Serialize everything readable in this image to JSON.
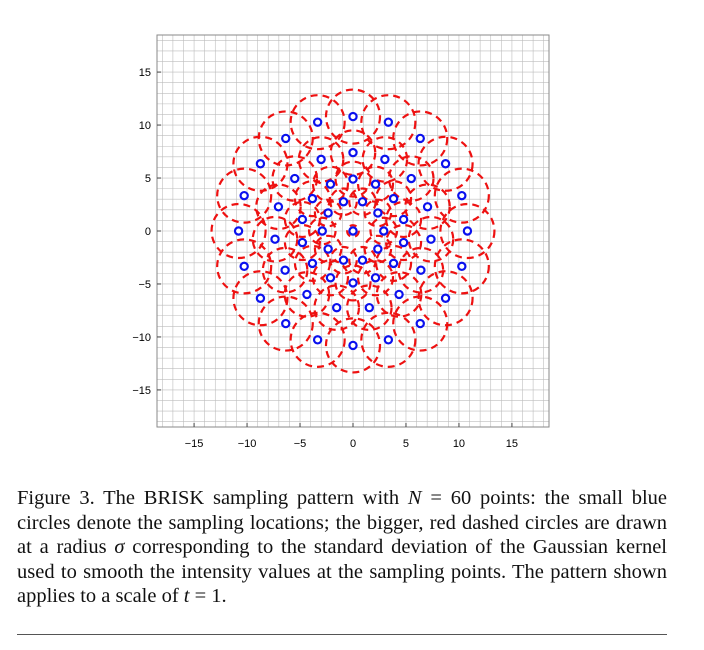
{
  "chart_data": {
    "type": "scatter",
    "title": "",
    "xlabel": "",
    "ylabel": "",
    "xlim": [
      -18.5,
      18.5
    ],
    "ylim": [
      -18.5,
      18.5
    ],
    "xticks": [
      -15,
      -10,
      -5,
      0,
      5,
      10,
      15
    ],
    "yticks": [
      15,
      10,
      5,
      0,
      -5,
      -10,
      -15
    ],
    "xtick_labels": [
      "−15",
      "−10",
      "−5",
      "0",
      "5",
      "10",
      "15"
    ],
    "ytick_labels": [
      "15",
      "10",
      "5",
      "0",
      "−5",
      "−10",
      "−15"
    ],
    "grid": true,
    "rings": [
      {
        "radius": 0,
        "count": 1,
        "sigma": 0.55,
        "phase_deg": 90
      },
      {
        "radius": 2.9,
        "count": 10,
        "sigma": 1.25,
        "phase_deg": 0
      },
      {
        "radius": 4.9,
        "count": 14,
        "sigma": 1.65,
        "phase_deg": 90
      },
      {
        "radius": 7.4,
        "count": 15,
        "sigma": 2.1,
        "phase_deg": 90
      },
      {
        "radius": 10.8,
        "count": 20,
        "sigma": 2.55,
        "phase_deg": 90
      }
    ],
    "colors": {
      "points": "#0a10ee",
      "circles": "#ee1111",
      "grid": "#bdbdbd"
    }
  },
  "caption": {
    "label": "Figure 3.",
    "text_1": " The BRISK sampling pattern with ",
    "var_n": "N",
    "text_2": " = 60 points: the small blue circles denote the sampling locations; the bigger, red dashed circles are drawn at a radius ",
    "var_sigma": "σ",
    "text_3": " corresponding to the standard deviation of the Gaussian kernel used to smooth the intensity values at the sampling points. The pattern shown applies to a scale of ",
    "var_t": "t",
    "text_4": " = 1."
  }
}
